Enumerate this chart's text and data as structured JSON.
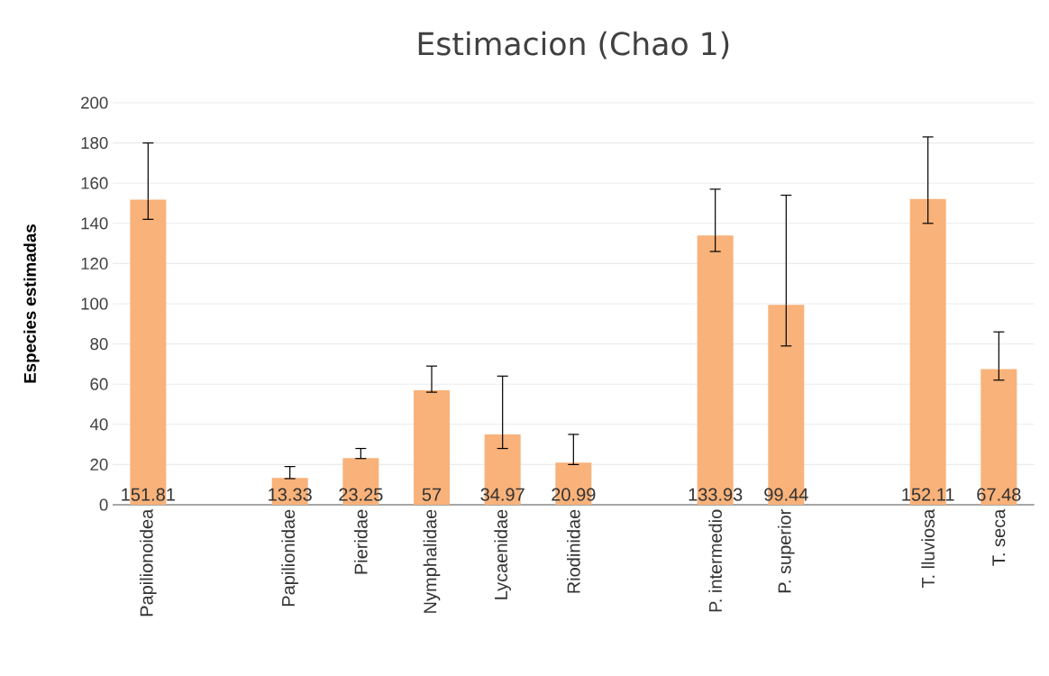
{
  "chart_data": {
    "type": "bar",
    "title": "Estimacion (Chao 1)",
    "ylabel": "Especies estimadas",
    "categories": [
      "Papilionoidea",
      null,
      "Papilionidae",
      "Pieridae",
      "Nymphalidae",
      "Lycaenidae",
      "Riodinidae",
      null,
      "P. intermedio",
      "P. superior",
      null,
      "T. lluviosa",
      "T. seca"
    ],
    "values": [
      151.81,
      null,
      13.33,
      23.25,
      57,
      34.97,
      20.99,
      null,
      133.93,
      99.44,
      null,
      152.11,
      67.48
    ],
    "value_labels": [
      "151.81",
      null,
      "13.33",
      "23.25",
      "57",
      "34.97",
      "20.99",
      null,
      "133.93",
      "99.44",
      null,
      "152.11",
      "67.48"
    ],
    "errors": [
      [
        142,
        180
      ],
      null,
      [
        13,
        19
      ],
      [
        23,
        28
      ],
      [
        56,
        69
      ],
      [
        28,
        64
      ],
      [
        20,
        35
      ],
      null,
      [
        126,
        157
      ],
      [
        79,
        154
      ],
      null,
      [
        140,
        183
      ],
      [
        62,
        86
      ]
    ],
    "color": "#f8b27a",
    "ylim": [
      0,
      200
    ],
    "yticks": [
      0,
      20,
      40,
      60,
      80,
      100,
      120,
      140,
      160,
      180,
      200
    ],
    "grid": "y"
  }
}
